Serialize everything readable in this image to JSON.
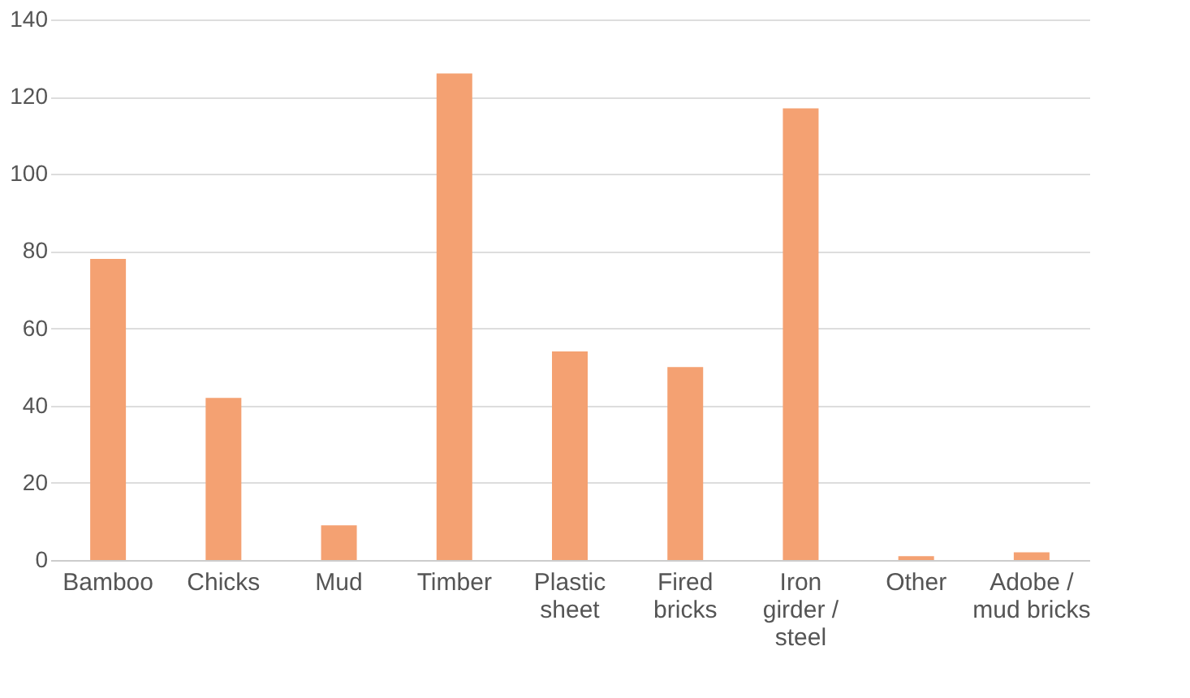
{
  "chart_data": {
    "type": "bar",
    "categories": [
      "Bamboo",
      "Chicks",
      "Mud",
      "Timber",
      "Plastic\nsheet",
      "Fired\nbricks",
      "Iron\ngirder /\nsteel",
      "Other",
      "Adobe /\nmud bricks"
    ],
    "values": [
      78,
      42,
      9,
      126,
      54,
      50,
      117,
      1,
      2
    ],
    "color": "#f4a172",
    "ylim": [
      0,
      140
    ],
    "yticks": [
      0,
      20,
      40,
      60,
      80,
      100,
      120,
      140
    ],
    "grid": "y"
  }
}
